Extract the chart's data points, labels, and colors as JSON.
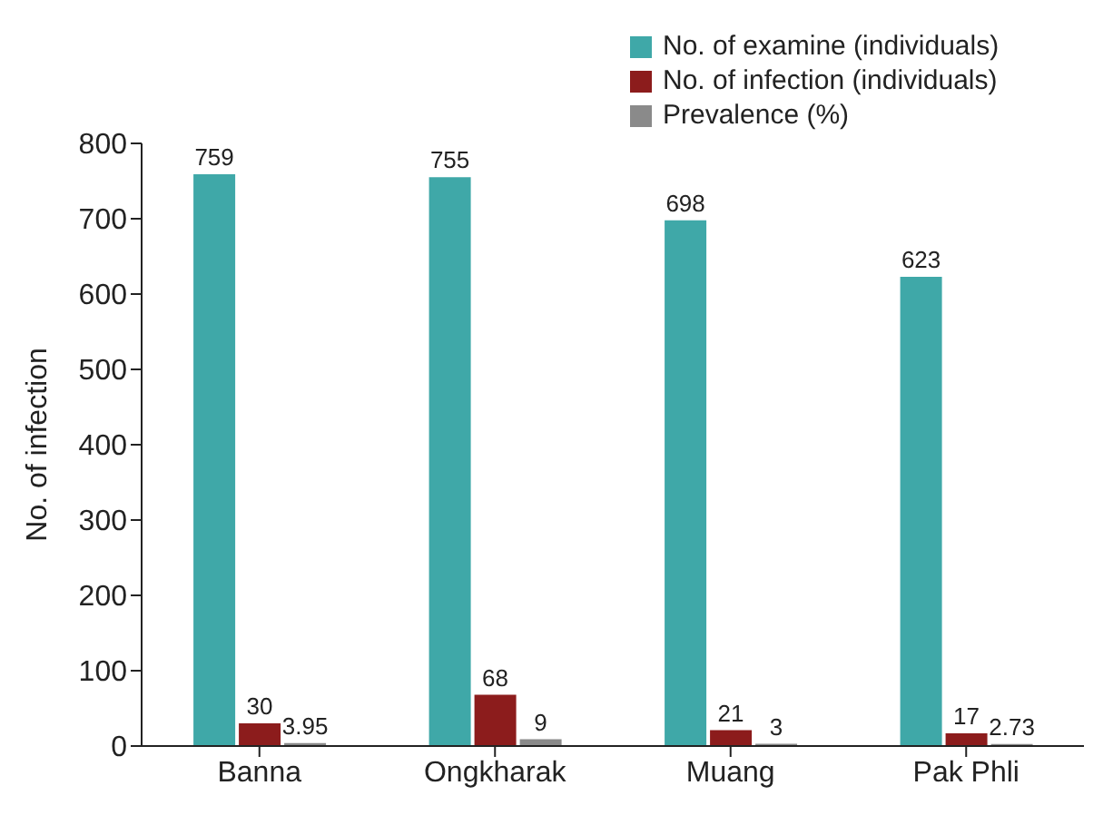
{
  "chart_data": {
    "type": "bar",
    "ylabel": "No. of infection",
    "categories": [
      "Banna",
      "Ongkharak",
      "Muang",
      "Pak Phli"
    ],
    "series": [
      {
        "name": "No. of examine (individuals)",
        "color": "#3fa8a8",
        "values": [
          759,
          755,
          698,
          623
        ]
      },
      {
        "name": "No. of infection (individuals)",
        "color": "#8c1c1c",
        "values": [
          30,
          68,
          21,
          17
        ]
      },
      {
        "name": "Prevalence (%)",
        "color": "#8a8a8a",
        "values": [
          3.95,
          9,
          3,
          2.73
        ]
      }
    ],
    "ylim": [
      0,
      800
    ],
    "yticks": [
      0,
      100,
      200,
      300,
      400,
      500,
      600,
      700,
      800
    ],
    "grid": false,
    "legend": "top right",
    "data_labels": true
  }
}
